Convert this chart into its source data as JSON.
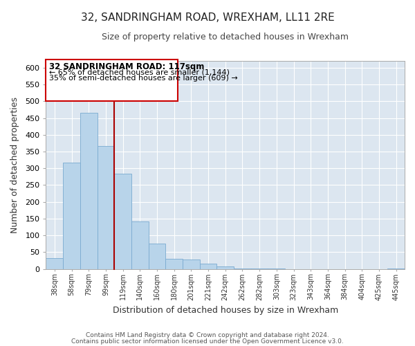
{
  "title": "32, SANDRINGHAM ROAD, WREXHAM, LL11 2RE",
  "subtitle": "Size of property relative to detached houses in Wrexham",
  "xlabel": "Distribution of detached houses by size in Wrexham",
  "ylabel": "Number of detached properties",
  "bar_color": "#b8d4ea",
  "bar_edge_color": "#7aaad0",
  "background_color": "#ffffff",
  "grid_color": "#dce6f0",
  "categories": [
    "38sqm",
    "58sqm",
    "79sqm",
    "99sqm",
    "119sqm",
    "140sqm",
    "160sqm",
    "180sqm",
    "201sqm",
    "221sqm",
    "242sqm",
    "262sqm",
    "282sqm",
    "303sqm",
    "323sqm",
    "343sqm",
    "364sqm",
    "384sqm",
    "404sqm",
    "425sqm",
    "445sqm"
  ],
  "values": [
    32,
    316,
    465,
    367,
    283,
    142,
    75,
    31,
    29,
    16,
    7,
    2,
    1,
    1,
    0,
    0,
    0,
    0,
    0,
    0,
    2
  ],
  "ylim": [
    0,
    620
  ],
  "yticks": [
    0,
    50,
    100,
    150,
    200,
    250,
    300,
    350,
    400,
    450,
    500,
    550,
    600
  ],
  "vline_bin_index": 3,
  "annotation_title": "32 SANDRINGHAM ROAD: 117sqm",
  "annotation_line1": "← 65% of detached houses are smaller (1,144)",
  "annotation_line2": "35% of semi-detached houses are larger (609) →",
  "annotation_box_color": "#ffffff",
  "annotation_box_edge": "#cc0000",
  "vline_color": "#aa0000",
  "footnote1": "Contains HM Land Registry data © Crown copyright and database right 2024.",
  "footnote2": "Contains public sector information licensed under the Open Government Licence v3.0."
}
